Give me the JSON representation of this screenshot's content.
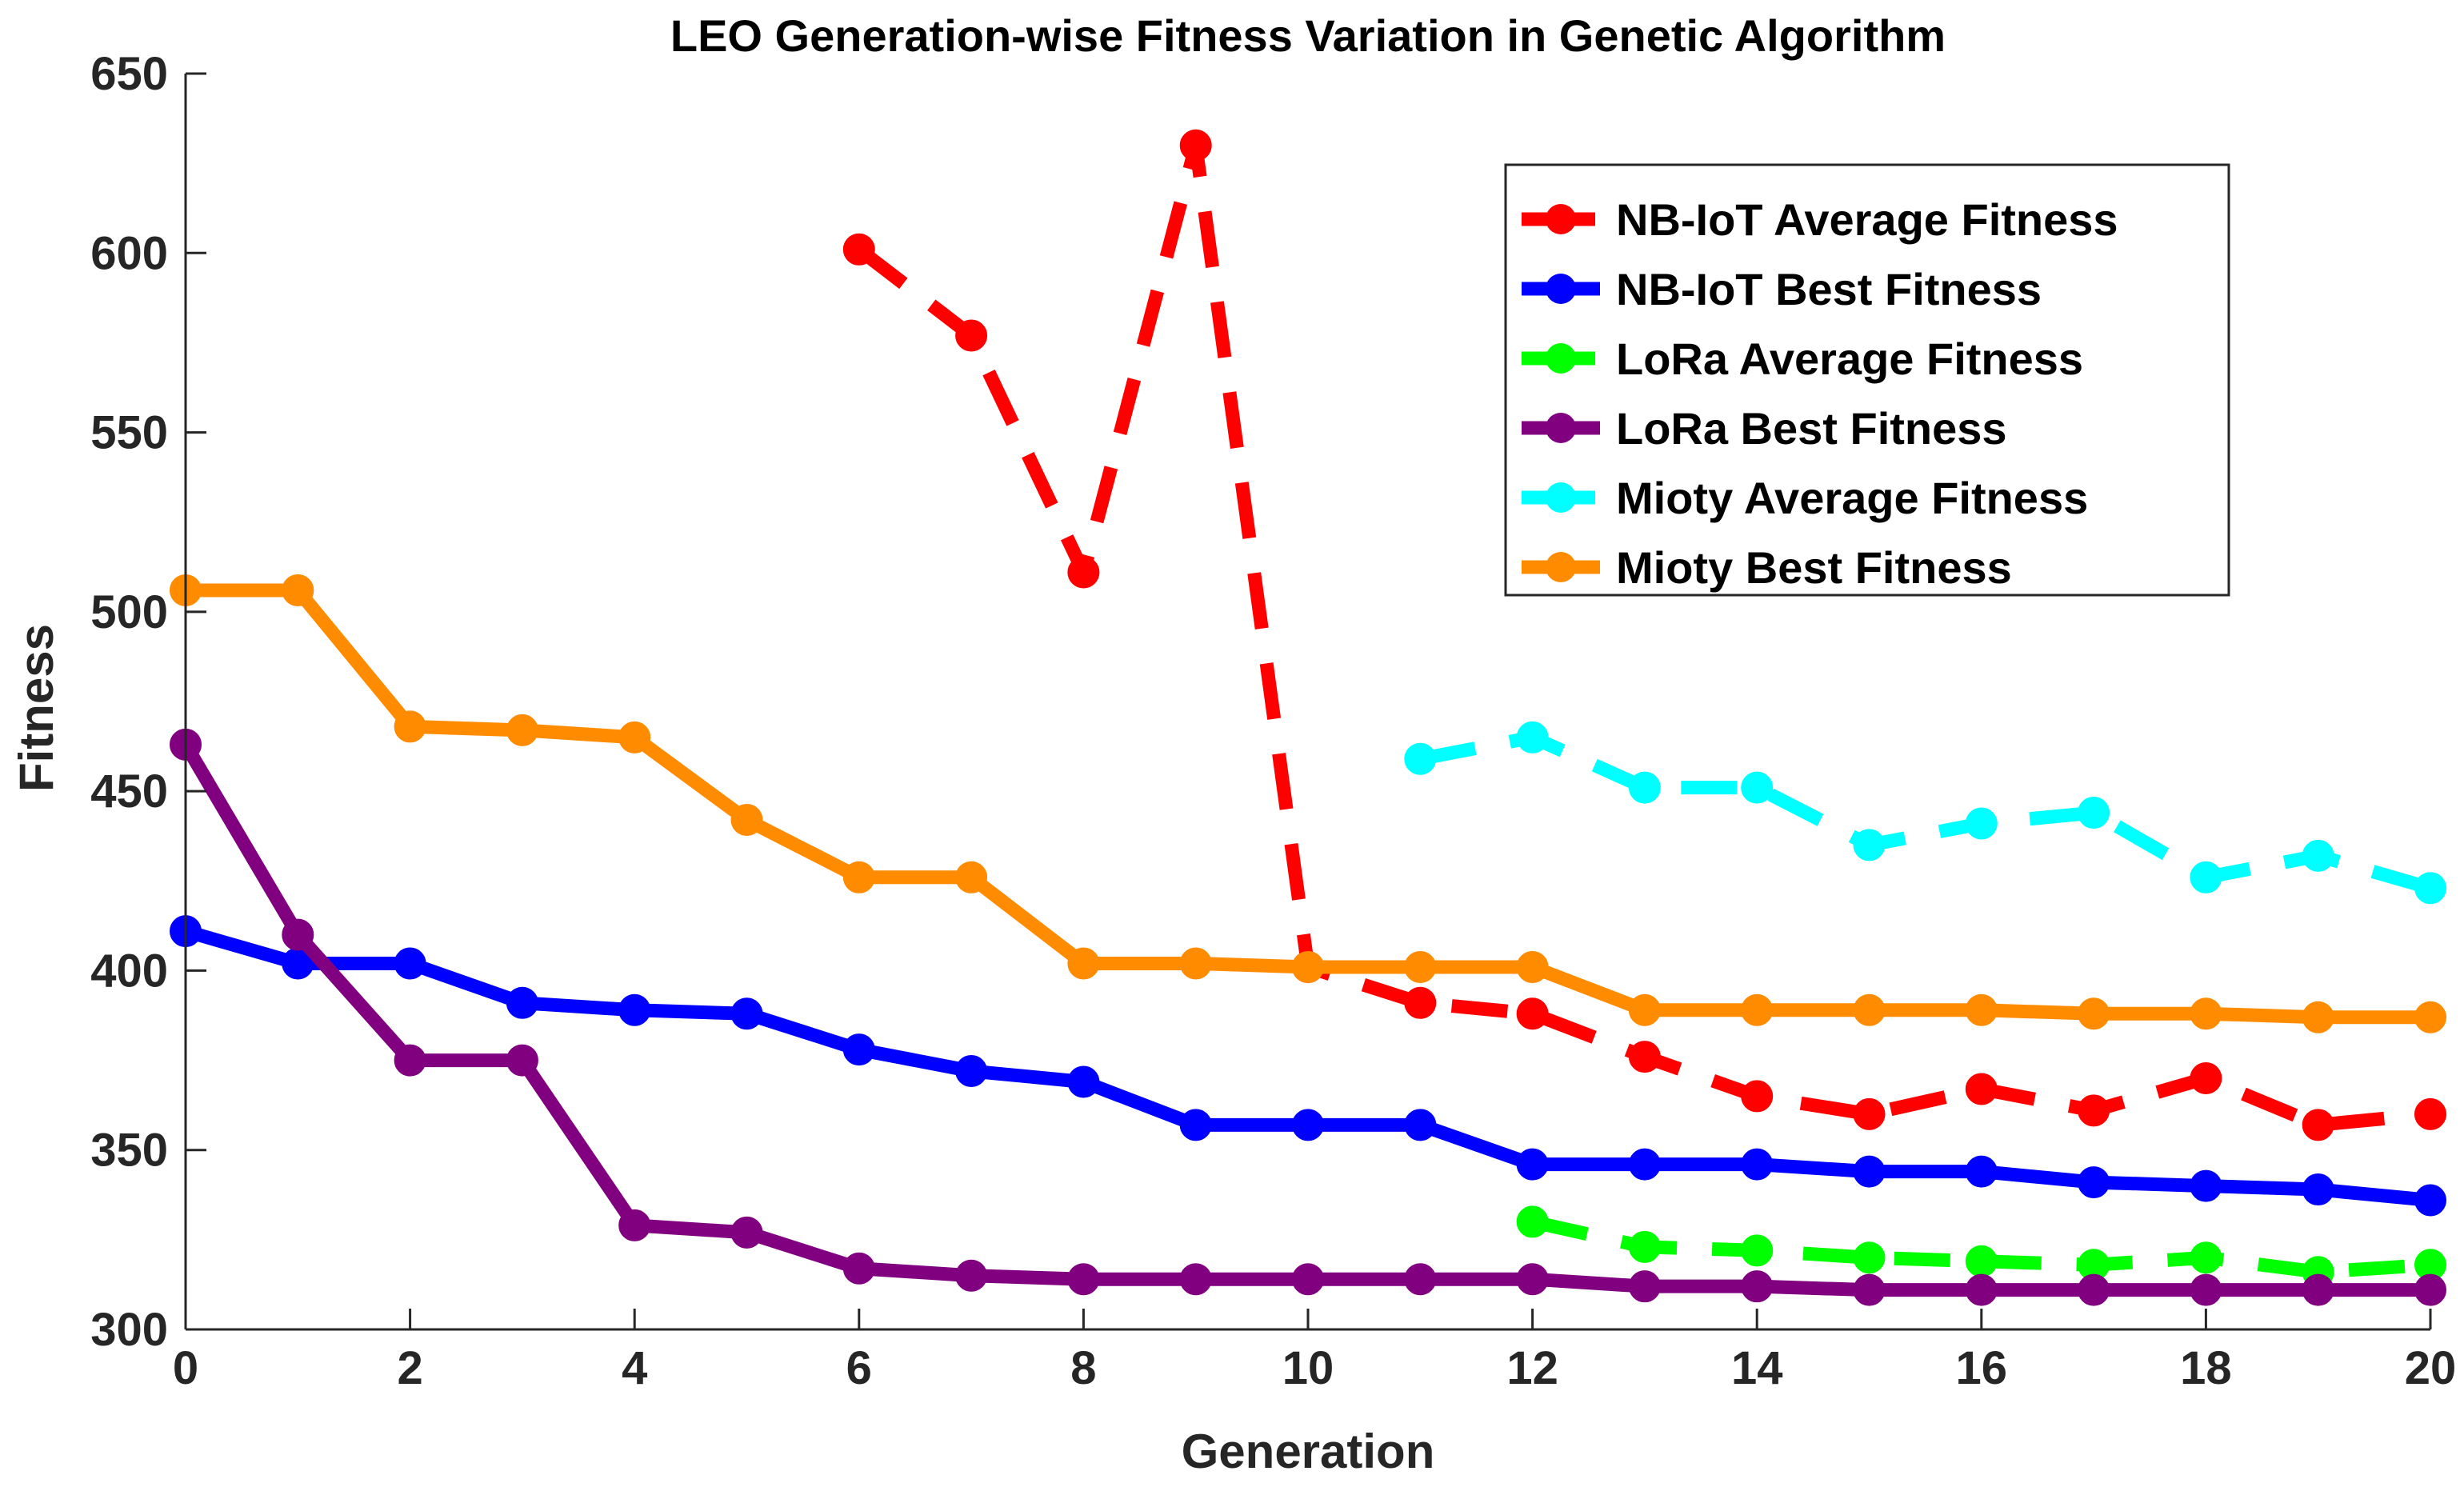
{
  "chart_data": {
    "type": "line",
    "title": "LEO Generation-wise Fitness Variation in Genetic Algorithm",
    "xlabel": "Generation",
    "ylabel": "Fitness",
    "xlim": [
      0,
      20
    ],
    "ylim": [
      300,
      650
    ],
    "xticks": [
      "0",
      "2",
      "4",
      "6",
      "8",
      "10",
      "12",
      "14",
      "16",
      "18",
      "20"
    ],
    "yticks": [
      "300",
      "350",
      "400",
      "450",
      "500",
      "550",
      "600",
      "650"
    ],
    "grid": false,
    "legend_position": "top-right",
    "series": [
      {
        "name": "NB-IoT Average Fitness",
        "color": "#ff0000",
        "style": "dashed",
        "x": [
          6,
          7,
          8,
          9,
          10,
          11,
          12,
          13,
          14,
          15,
          16,
          17,
          18,
          19,
          20
        ],
        "values": [
          601,
          577,
          511,
          630,
          401,
          391,
          388,
          376,
          365,
          360,
          367,
          361,
          370,
          357,
          360
        ]
      },
      {
        "name": "NB-IoT Best Fitness",
        "color": "#0000ff",
        "style": "solid",
        "x": [
          0,
          1,
          2,
          3,
          4,
          5,
          6,
          7,
          8,
          9,
          10,
          11,
          12,
          13,
          14,
          15,
          16,
          17,
          18,
          19,
          20
        ],
        "values": [
          411,
          402,
          402,
          391,
          389,
          388,
          378,
          372,
          369,
          357,
          357,
          357,
          346,
          346,
          346,
          344,
          344,
          341,
          340,
          339,
          336
        ]
      },
      {
        "name": "LoRa Average Fitness",
        "color": "#00ff00",
        "style": "dashed",
        "x": [
          12,
          13,
          14,
          15,
          16,
          17,
          18,
          19,
          20
        ],
        "values": [
          330,
          323,
          322,
          320,
          319,
          318,
          320,
          316,
          318
        ]
      },
      {
        "name": "LoRa Best Fitness",
        "color": "#800080",
        "style": "solid",
        "x": [
          0,
          1,
          2,
          3,
          4,
          5,
          6,
          7,
          8,
          9,
          10,
          11,
          12,
          13,
          14,
          15,
          16,
          17,
          18,
          19,
          20
        ],
        "values": [
          463,
          410,
          375,
          375,
          329,
          327,
          317,
          315,
          314,
          314,
          314,
          314,
          314,
          312,
          312,
          311,
          311,
          311,
          311,
          311,
          311
        ]
      },
      {
        "name": "Mioty Average Fitness",
        "color": "#00ffff",
        "style": "dashed",
        "x": [
          11,
          12,
          13,
          14,
          15,
          16,
          17,
          18,
          19,
          20
        ],
        "values": [
          459,
          465,
          451,
          451,
          435,
          441,
          444,
          426,
          432,
          423
        ]
      },
      {
        "name": "Mioty Best Fitness",
        "color": "#ff8c00",
        "style": "solid",
        "x": [
          0,
          1,
          2,
          3,
          4,
          5,
          6,
          7,
          8,
          9,
          10,
          11,
          12,
          13,
          14,
          15,
          16,
          17,
          18,
          19,
          20
        ],
        "values": [
          506,
          506,
          468,
          467,
          465,
          442,
          426,
          426,
          402,
          402,
          401,
          401,
          401,
          389,
          389,
          389,
          389,
          388,
          388,
          387,
          387
        ]
      }
    ]
  }
}
